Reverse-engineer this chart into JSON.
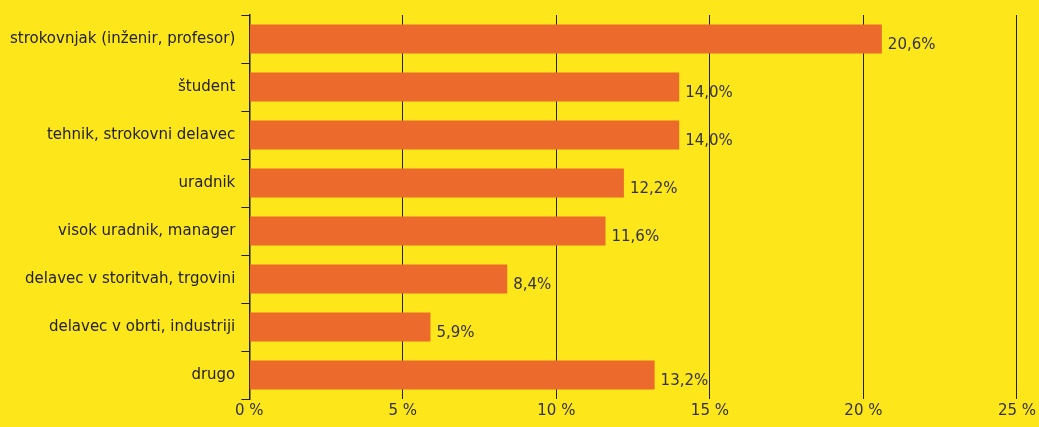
{
  "chart_data": {
    "type": "bar",
    "orientation": "horizontal",
    "categories": [
      "strokovnjak (inženir, profesor)",
      "študent",
      "tehnik, strokovni delavec",
      "uradnik",
      "visok uradnik, manager",
      "delavec v storitvah, trgovini",
      "delavec v obrti, industriji",
      "drugo"
    ],
    "values": [
      20.6,
      14.0,
      14.0,
      12.2,
      11.6,
      8.4,
      5.9,
      13.2
    ],
    "value_labels": [
      "20,6%",
      "14,0%",
      "14,0%",
      "12,2%",
      "11,6%",
      "8,4%",
      "5,9%",
      "13,2%"
    ],
    "color": "#ec6a2c",
    "xlim": [
      0,
      25
    ],
    "xticks": [
      {
        "value": 0,
        "label": "0 %"
      },
      {
        "value": 5,
        "label": "5 %"
      },
      {
        "value": 10,
        "label": "10 %"
      },
      {
        "value": 15,
        "label": "15 %"
      },
      {
        "value": 20,
        "label": "20 %"
      },
      {
        "value": 25,
        "label": "25 %"
      }
    ],
    "grid": "x",
    "legend": false
  }
}
